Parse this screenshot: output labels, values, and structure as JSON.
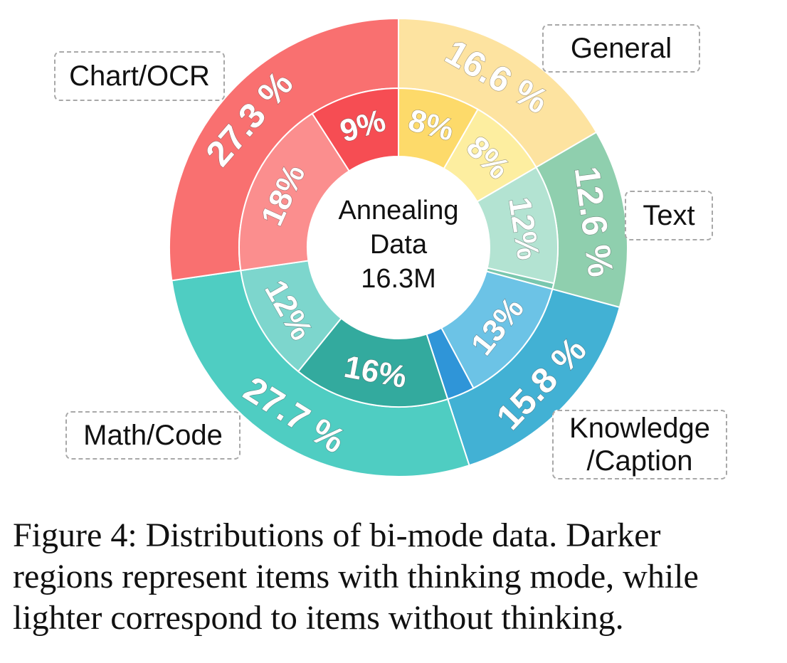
{
  "chart_data": {
    "type": "sunburst",
    "center_label": [
      "Annealing",
      "Data",
      "16.3M"
    ],
    "outer_ring": [
      {
        "name": "General",
        "value": 16.6,
        "label": "16.6 %",
        "color": "#fde3a0"
      },
      {
        "name": "Text",
        "value": 12.6,
        "label": "12.6 %",
        "color": "#8fcfae"
      },
      {
        "name": "Knowledge/Caption",
        "value": 15.8,
        "label": "15.8 %",
        "color": "#42b1d4"
      },
      {
        "name": "Math/Code",
        "value": 27.7,
        "label": "27.7 %",
        "color": "#4fcdc2"
      },
      {
        "name": "Chart/OCR",
        "value": 27.3,
        "label": "27.3 %",
        "color": "#f97070"
      }
    ],
    "inner_ring": [
      {
        "parent": "General",
        "mode": "thinking",
        "value": 8,
        "label": "8%",
        "color": "#fdda6a"
      },
      {
        "parent": "General",
        "mode": "non-thinking",
        "value": 8,
        "label": "8%",
        "color": "#fdeea0"
      },
      {
        "parent": "Text",
        "mode": "non-thinking",
        "value": 12,
        "label": "12%",
        "color": "#b3e3d2"
      },
      {
        "parent": "Text",
        "mode": "thinking",
        "value": 0.6,
        "label": "",
        "color": "#79c7ae"
      },
      {
        "parent": "Knowledge/Caption",
        "mode": "non-thinking",
        "value": 13,
        "label": "13%",
        "color": "#6cc3e6"
      },
      {
        "parent": "Knowledge/Caption",
        "mode": "thinking",
        "value": 2.8,
        "label": "",
        "color": "#2f95d8"
      },
      {
        "parent": "Math/Code",
        "mode": "thinking",
        "value": 16,
        "label": "16%",
        "color": "#33aa9e"
      },
      {
        "parent": "Math/Code",
        "mode": "non-thinking",
        "value": 12,
        "label": "12%",
        "color": "#7dd6cd"
      },
      {
        "parent": "Chart/OCR",
        "mode": "non-thinking",
        "value": 18,
        "label": "18%",
        "color": "#fb8e8e"
      },
      {
        "parent": "Chart/OCR",
        "mode": "thinking",
        "value": 9,
        "label": "9%",
        "color": "#f64d53"
      }
    ]
  },
  "legend": {
    "chart_ocr": "Chart/OCR",
    "general": "General",
    "text": "Text",
    "math_code": "Math/Code",
    "knowledge_line1": "Knowledge",
    "knowledge_line2": "/Caption"
  },
  "caption": {
    "line1": "Figure 4:  Distributions of bi-mode data.  Darker",
    "line2": "regions represent items with thinking mode, while",
    "line3": "lighter correspond to items without thinking."
  }
}
